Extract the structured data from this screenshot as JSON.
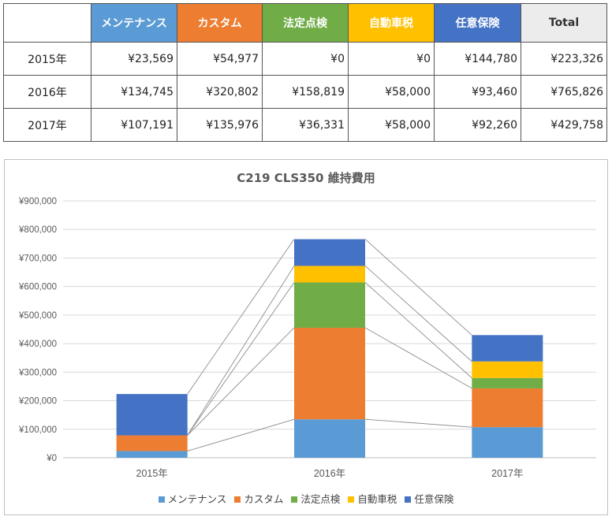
{
  "table": {
    "headers": [
      "メンテナンス",
      "カスタム",
      "法定点検",
      "自動車税",
      "任意保険"
    ],
    "total_header": "Total",
    "rows": [
      {
        "year": "2015年",
        "values": [
          "¥23,569",
          "¥54,977",
          "¥0",
          "¥0",
          "¥144,780"
        ],
        "total": "¥223,326"
      },
      {
        "year": "2016年",
        "values": [
          "¥134,745",
          "¥320,802",
          "¥158,819",
          "¥58,000",
          "¥93,460"
        ],
        "total": "¥765,826"
      },
      {
        "year": "2017年",
        "values": [
          "¥107,191",
          "¥135,976",
          "¥36,331",
          "¥58,000",
          "¥92,260"
        ],
        "total": "¥429,758"
      }
    ]
  },
  "colors": {
    "メンテナンス": "#5b9bd5",
    "カスタム": "#ed7d31",
    "法定点検": "#70ad47",
    "自動車税": "#ffc000",
    "任意保険": "#4472c4",
    "header_maintenance": "#5b9bd5",
    "header_custom": "#ed7d31",
    "header_inspection": "#70ad47",
    "header_tax": "#ffc000",
    "header_insurance": "#4472c4"
  },
  "chart_data": {
    "type": "bar",
    "stacked": true,
    "title": "C219 CLS350 維持費用",
    "categories": [
      "2015年",
      "2016年",
      "2017年"
    ],
    "series": [
      {
        "name": "メンテナンス",
        "values": [
          23569,
          134745,
          107191
        ]
      },
      {
        "name": "カスタム",
        "values": [
          54977,
          320802,
          135976
        ]
      },
      {
        "name": "法定点検",
        "values": [
          0,
          158819,
          36331
        ]
      },
      {
        "name": "自動車税",
        "values": [
          0,
          58000,
          58000
        ]
      },
      {
        "name": "任意保険",
        "values": [
          144780,
          93460,
          92260
        ]
      }
    ],
    "ylim": [
      0,
      900000
    ],
    "y_ticks": [
      "¥0",
      "¥100,000",
      "¥200,000",
      "¥300,000",
      "¥400,000",
      "¥500,000",
      "¥600,000",
      "¥700,000",
      "¥800,000",
      "¥900,000"
    ],
    "grid": true,
    "series_lines": true,
    "legend_position": "bottom"
  }
}
